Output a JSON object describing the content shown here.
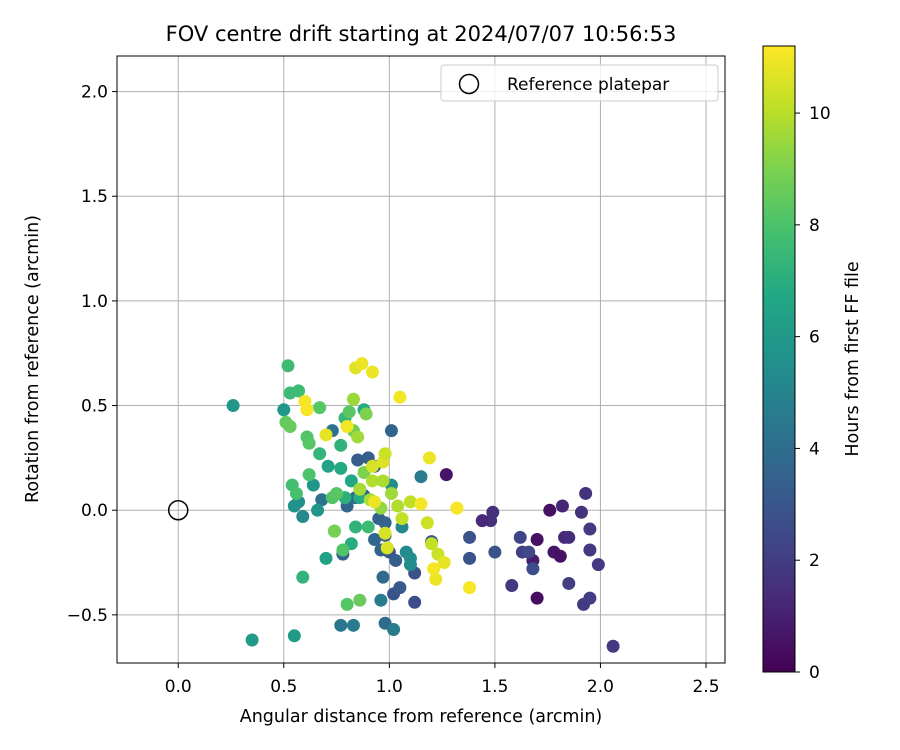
{
  "chart_data": {
    "type": "scatter",
    "title": "FOV centre drift starting at 2024/07/07 10:56:53",
    "xlabel": "Angular distance from reference (arcmin)",
    "ylabel": "Rotation from reference (arcmin)",
    "xlim": [
      -0.29,
      2.59
    ],
    "ylim": [
      -0.73,
      2.17
    ],
    "xticks": [
      0.0,
      0.5,
      1.0,
      1.5,
      2.0,
      2.5
    ],
    "xtick_labels": [
      "0.0",
      "0.5",
      "1.0",
      "1.5",
      "2.0",
      "2.5"
    ],
    "yticks": [
      -0.5,
      0.0,
      0.5,
      1.0,
      1.5,
      2.0
    ],
    "ytick_labels": [
      "−0.5",
      "0.0",
      "0.5",
      "1.0",
      "1.5",
      "2.0"
    ],
    "grid": true,
    "legend": {
      "placement": "top-right",
      "entries": [
        "Reference platepar"
      ]
    },
    "reference_point": {
      "x": 0.0,
      "y": 0.0,
      "label": "Reference platepar",
      "marker": "open-circle"
    },
    "colorbar": {
      "label": "Hours from first FF file",
      "colormap": "viridis",
      "range": [
        0,
        11.2
      ],
      "ticks": [
        0,
        2,
        4,
        6,
        8,
        10
      ],
      "tick_labels": [
        "0",
        "2",
        "4",
        "6",
        "8",
        "10"
      ]
    },
    "series": [
      {
        "points": [
          {
            "x": 1.27,
            "y": 0.17,
            "h": 0.6
          },
          {
            "x": 1.7,
            "y": -0.42,
            "h": 0.4
          },
          {
            "x": 1.7,
            "y": -0.14,
            "h": 0.5
          },
          {
            "x": 1.76,
            "y": 0.0,
            "h": 0.5
          },
          {
            "x": 1.78,
            "y": -0.2,
            "h": 0.6
          },
          {
            "x": 1.81,
            "y": -0.22,
            "h": 0.5
          },
          {
            "x": 1.68,
            "y": -0.24,
            "h": 0.9
          },
          {
            "x": 1.82,
            "y": 0.02,
            "h": 1.2
          },
          {
            "x": 1.83,
            "y": -0.13,
            "h": 1.2
          },
          {
            "x": 1.85,
            "y": -0.13,
            "h": 1.4
          },
          {
            "x": 1.49,
            "y": -0.01,
            "h": 1.5
          },
          {
            "x": 1.48,
            "y": -0.05,
            "h": 1.6
          },
          {
            "x": 1.44,
            "y": -0.05,
            "h": 1.3
          },
          {
            "x": 1.91,
            "y": -0.01,
            "h": 1.6
          },
          {
            "x": 1.93,
            "y": 0.08,
            "h": 1.6
          },
          {
            "x": 1.95,
            "y": -0.09,
            "h": 1.9
          },
          {
            "x": 1.95,
            "y": -0.19,
            "h": 1.9
          },
          {
            "x": 1.99,
            "y": -0.26,
            "h": 1.9
          },
          {
            "x": 1.58,
            "y": -0.36,
            "h": 1.8
          },
          {
            "x": 1.62,
            "y": -0.13,
            "h": 2.3
          },
          {
            "x": 1.63,
            "y": -0.2,
            "h": 2.1
          },
          {
            "x": 1.66,
            "y": -0.2,
            "h": 2.4
          },
          {
            "x": 1.68,
            "y": -0.28,
            "h": 2.6
          },
          {
            "x": 1.85,
            "y": -0.35,
            "h": 2.0
          },
          {
            "x": 1.92,
            "y": -0.45,
            "h": 1.9
          },
          {
            "x": 1.95,
            "y": -0.42,
            "h": 2.0
          },
          {
            "x": 2.06,
            "y": -0.65,
            "h": 1.9
          },
          {
            "x": 1.5,
            "y": -0.2,
            "h": 2.8
          },
          {
            "x": 1.38,
            "y": -0.13,
            "h": 2.8
          },
          {
            "x": 1.38,
            "y": -0.23,
            "h": 2.8
          },
          {
            "x": 1.12,
            "y": -0.44,
            "h": 2.6
          },
          {
            "x": 1.2,
            "y": -0.15,
            "h": 2.9
          },
          {
            "x": 1.12,
            "y": -0.3,
            "h": 2.9
          },
          {
            "x": 1.0,
            "y": -0.2,
            "h": 3.0
          },
          {
            "x": 1.02,
            "y": -0.4,
            "h": 2.9
          },
          {
            "x": 1.05,
            "y": -0.37,
            "h": 3.1
          },
          {
            "x": 1.03,
            "y": -0.24,
            "h": 3.3
          },
          {
            "x": 0.98,
            "y": -0.12,
            "h": 3.1
          },
          {
            "x": 0.96,
            "y": -0.19,
            "h": 3.6
          },
          {
            "x": 0.93,
            "y": -0.14,
            "h": 3.7
          },
          {
            "x": 0.95,
            "y": -0.04,
            "h": 3.4
          },
          {
            "x": 0.98,
            "y": -0.06,
            "h": 3.6
          },
          {
            "x": 1.01,
            "y": 0.38,
            "h": 3.6
          },
          {
            "x": 0.85,
            "y": 0.24,
            "h": 3.3
          },
          {
            "x": 0.9,
            "y": 0.25,
            "h": 3.4
          },
          {
            "x": 0.93,
            "y": 0.21,
            "h": 3.8
          },
          {
            "x": 0.8,
            "y": 0.02,
            "h": 3.7
          },
          {
            "x": 0.84,
            "y": 0.06,
            "h": 3.9
          },
          {
            "x": 0.88,
            "y": 0.07,
            "h": 3.5
          },
          {
            "x": 0.78,
            "y": -0.21,
            "h": 3.6
          },
          {
            "x": 0.73,
            "y": 0.38,
            "h": 4.3
          },
          {
            "x": 0.68,
            "y": 0.05,
            "h": 4.3
          },
          {
            "x": 0.97,
            "y": -0.32,
            "h": 3.9
          },
          {
            "x": 0.98,
            "y": -0.54,
            "h": 3.9
          },
          {
            "x": 1.02,
            "y": -0.57,
            "h": 4.6
          },
          {
            "x": 0.96,
            "y": -0.43,
            "h": 4.6
          },
          {
            "x": 0.77,
            "y": -0.55,
            "h": 4.4
          },
          {
            "x": 0.83,
            "y": -0.55,
            "h": 4.6
          },
          {
            "x": 1.15,
            "y": 0.16,
            "h": 4.6
          },
          {
            "x": 1.08,
            "y": -0.2,
            "h": 5.3
          },
          {
            "x": 1.1,
            "y": -0.23,
            "h": 5.5
          },
          {
            "x": 1.1,
            "y": -0.26,
            "h": 5.4
          },
          {
            "x": 1.01,
            "y": 0.12,
            "h": 5.4
          },
          {
            "x": 1.06,
            "y": -0.08,
            "h": 5.2
          },
          {
            "x": 0.57,
            "y": 0.04,
            "h": 5.4
          },
          {
            "x": 0.59,
            "y": -0.03,
            "h": 5.2
          },
          {
            "x": 0.26,
            "y": 0.5,
            "h": 5.9
          },
          {
            "x": 0.35,
            "y": -0.62,
            "h": 6.1
          },
          {
            "x": 0.55,
            "y": -0.6,
            "h": 6.1
          },
          {
            "x": 0.5,
            "y": 0.48,
            "h": 5.9
          },
          {
            "x": 0.55,
            "y": 0.02,
            "h": 5.7
          },
          {
            "x": 0.64,
            "y": 0.12,
            "h": 5.9
          },
          {
            "x": 0.66,
            "y": 0.0,
            "h": 5.8
          },
          {
            "x": 0.7,
            "y": -0.23,
            "h": 6.4
          },
          {
            "x": 0.71,
            "y": 0.21,
            "h": 6.5
          },
          {
            "x": 0.82,
            "y": 0.14,
            "h": 6.7
          },
          {
            "x": 0.86,
            "y": 0.06,
            "h": 6.9
          },
          {
            "x": 0.74,
            "y": -0.1,
            "h": 6.8
          },
          {
            "x": 0.79,
            "y": 0.06,
            "h": 7.1
          },
          {
            "x": 0.77,
            "y": 0.2,
            "h": 6.8
          },
          {
            "x": 0.82,
            "y": -0.16,
            "h": 6.9
          },
          {
            "x": 0.88,
            "y": 0.48,
            "h": 6.8
          },
          {
            "x": 0.59,
            "y": -0.32,
            "h": 7.3
          },
          {
            "x": 0.67,
            "y": 0.27,
            "h": 7.3
          },
          {
            "x": 0.77,
            "y": 0.31,
            "h": 7.2
          },
          {
            "x": 0.79,
            "y": 0.44,
            "h": 7.4
          },
          {
            "x": 0.84,
            "y": -0.08,
            "h": 7.2
          },
          {
            "x": 0.9,
            "y": -0.08,
            "h": 7.6
          },
          {
            "x": 0.52,
            "y": 0.69,
            "h": 7.6
          },
          {
            "x": 0.53,
            "y": 0.56,
            "h": 7.6
          },
          {
            "x": 0.57,
            "y": 0.57,
            "h": 7.6
          },
          {
            "x": 0.54,
            "y": 0.12,
            "h": 7.8
          },
          {
            "x": 0.56,
            "y": 0.08,
            "h": 7.9
          },
          {
            "x": 0.62,
            "y": 0.17,
            "h": 8.0
          },
          {
            "x": 0.61,
            "y": 0.35,
            "h": 8.1
          },
          {
            "x": 0.62,
            "y": 0.32,
            "h": 8.2
          },
          {
            "x": 0.67,
            "y": 0.49,
            "h": 8.2
          },
          {
            "x": 0.73,
            "y": 0.06,
            "h": 8.1
          },
          {
            "x": 0.75,
            "y": 0.08,
            "h": 8.3
          },
          {
            "x": 0.78,
            "y": -0.19,
            "h": 8.1
          },
          {
            "x": 0.8,
            "y": -0.45,
            "h": 8.2
          },
          {
            "x": 0.86,
            "y": -0.43,
            "h": 8.6
          },
          {
            "x": 0.81,
            "y": 0.47,
            "h": 8.3
          },
          {
            "x": 0.83,
            "y": 0.38,
            "h": 8.7
          },
          {
            "x": 0.51,
            "y": 0.42,
            "h": 8.5
          },
          {
            "x": 0.53,
            "y": 0.4,
            "h": 8.6
          },
          {
            "x": 0.74,
            "y": -0.1,
            "h": 8.9
          },
          {
            "x": 0.89,
            "y": 0.46,
            "h": 9.0
          },
          {
            "x": 0.88,
            "y": 0.18,
            "h": 9.0
          },
          {
            "x": 0.83,
            "y": 0.53,
            "h": 9.5
          },
          {
            "x": 0.85,
            "y": 0.35,
            "h": 9.6
          },
          {
            "x": 0.86,
            "y": 0.1,
            "h": 9.7
          },
          {
            "x": 0.91,
            "y": 0.05,
            "h": 9.8
          },
          {
            "x": 0.92,
            "y": 0.14,
            "h": 9.9
          },
          {
            "x": 0.97,
            "y": 0.14,
            "h": 9.8
          },
          {
            "x": 1.01,
            "y": 0.08,
            "h": 9.6
          },
          {
            "x": 0.96,
            "y": 0.01,
            "h": 9.4
          },
          {
            "x": 1.04,
            "y": 0.02,
            "h": 9.9
          },
          {
            "x": 1.1,
            "y": 0.04,
            "h": 10.1
          },
          {
            "x": 1.06,
            "y": -0.04,
            "h": 10.2
          },
          {
            "x": 1.2,
            "y": -0.16,
            "h": 10.2
          },
          {
            "x": 1.23,
            "y": -0.21,
            "h": 10.3
          },
          {
            "x": 1.18,
            "y": -0.06,
            "h": 10.4
          },
          {
            "x": 0.98,
            "y": -0.11,
            "h": 10.5
          },
          {
            "x": 0.99,
            "y": -0.18,
            "h": 10.6
          },
          {
            "x": 0.92,
            "y": 0.21,
            "h": 10.5
          },
          {
            "x": 0.97,
            "y": 0.23,
            "h": 10.7
          },
          {
            "x": 0.98,
            "y": 0.27,
            "h": 10.3
          },
          {
            "x": 0.84,
            "y": 0.68,
            "h": 10.7
          },
          {
            "x": 0.87,
            "y": 0.7,
            "h": 10.9
          },
          {
            "x": 0.92,
            "y": 0.66,
            "h": 10.9
          },
          {
            "x": 1.05,
            "y": 0.54,
            "h": 11.0
          },
          {
            "x": 0.8,
            "y": 0.4,
            "h": 11.0
          },
          {
            "x": 0.6,
            "y": 0.52,
            "h": 11.0
          },
          {
            "x": 0.61,
            "y": 0.48,
            "h": 11.1
          },
          {
            "x": 0.7,
            "y": 0.36,
            "h": 10.8
          },
          {
            "x": 0.93,
            "y": 0.04,
            "h": 10.9
          },
          {
            "x": 1.15,
            "y": 0.03,
            "h": 11.0
          },
          {
            "x": 1.19,
            "y": 0.25,
            "h": 10.9
          },
          {
            "x": 1.21,
            "y": -0.28,
            "h": 11.0
          },
          {
            "x": 1.26,
            "y": -0.25,
            "h": 10.8
          },
          {
            "x": 1.22,
            "y": -0.33,
            "h": 10.9
          },
          {
            "x": 1.32,
            "y": 0.01,
            "h": 11.1
          },
          {
            "x": 1.38,
            "y": -0.37,
            "h": 11.1
          }
        ]
      }
    ]
  }
}
